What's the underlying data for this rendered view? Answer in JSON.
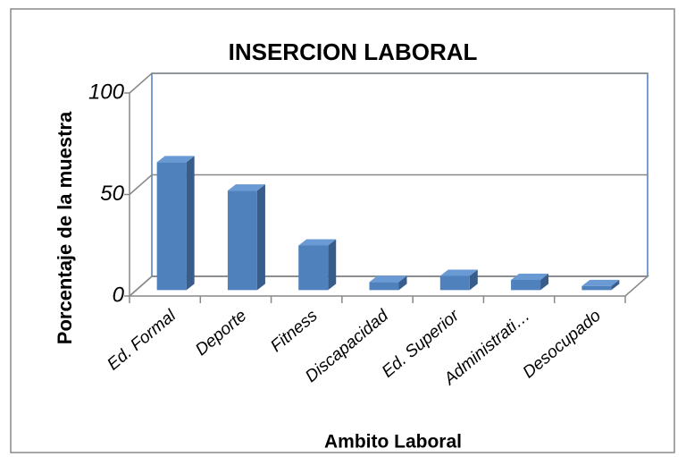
{
  "chart_data": {
    "type": "bar3d",
    "title": "INSERCION LABORAL",
    "x_label": "Ambito Laboral",
    "y_label": "Porcentaje de la muestra",
    "categories": [
      "Ed. Formal",
      "Deporte",
      "Fitness",
      "Discapacidad",
      "Ed. Superior",
      "Administrati…",
      "Desocupado"
    ],
    "values": [
      63,
      49,
      22,
      4,
      7,
      5,
      2
    ],
    "color": "#4f81bd",
    "ylim": [
      0,
      100
    ],
    "yticks": [
      0,
      50,
      100
    ],
    "grid": true
  }
}
